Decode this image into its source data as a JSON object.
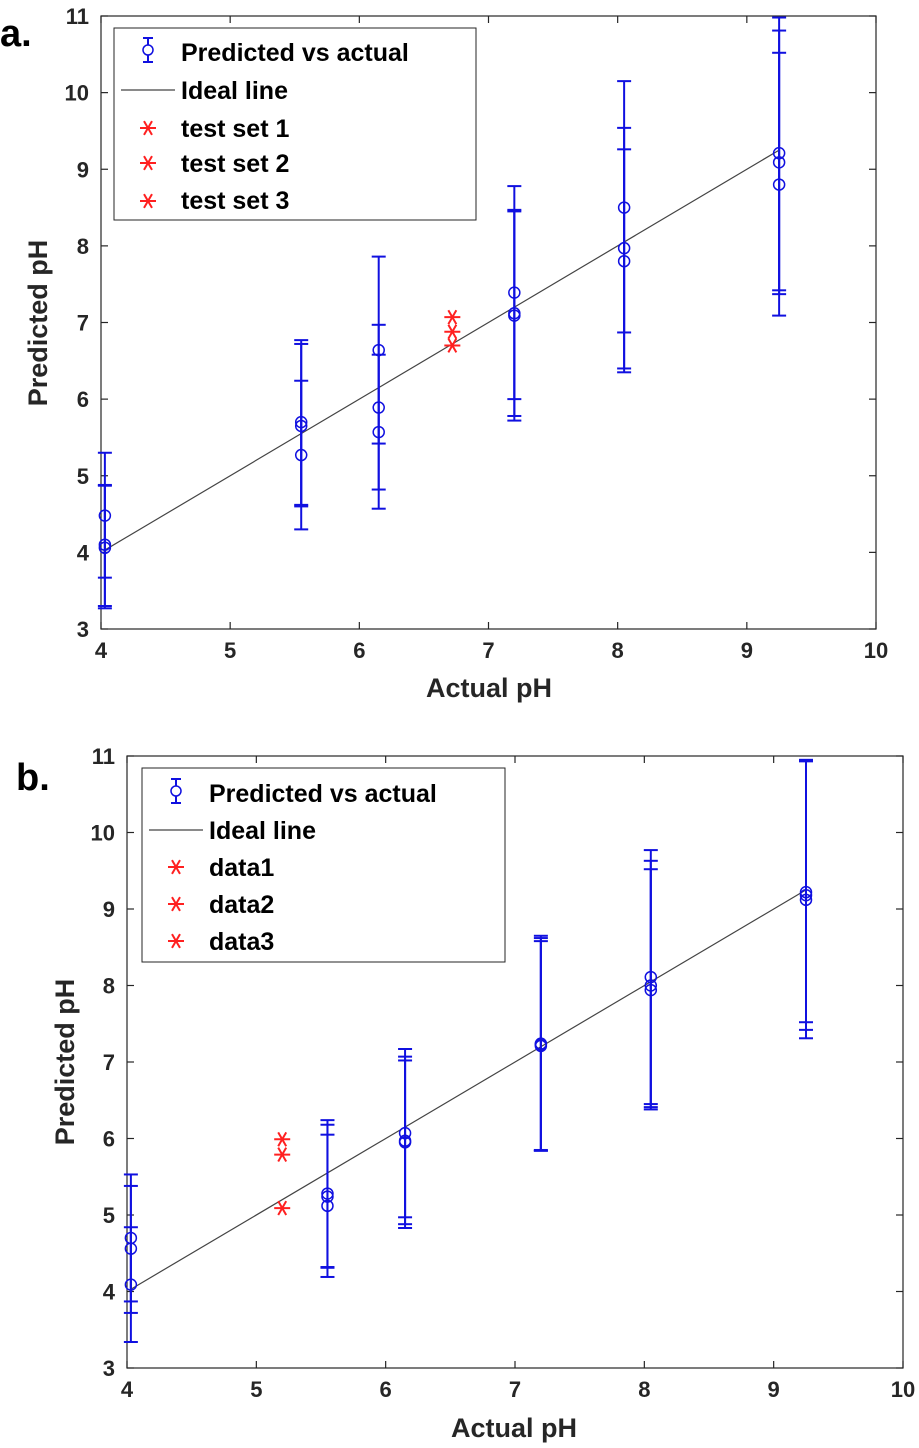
{
  "colors": {
    "marker_blue": "#1010e0",
    "star_red": "#ff2020",
    "ideal_line": "#444444",
    "axis": "#262626"
  },
  "chart_data": [
    {
      "panel_label": "a.",
      "type": "scatter",
      "xlabel": "Actual pH",
      "ylabel": "Predicted pH",
      "xlim": [
        4,
        10
      ],
      "ylim": [
        3,
        11
      ],
      "xticks": [
        "4",
        "5",
        "6",
        "7",
        "8",
        "9",
        "10"
      ],
      "yticks": [
        "3",
        "4",
        "5",
        "6",
        "7",
        "8",
        "9",
        "10",
        "11"
      ],
      "legend": {
        "position": "top-left",
        "entries": [
          "Predicted vs actual",
          "Ideal line",
          "test set 1",
          "test set 2",
          "test set 3"
        ]
      },
      "ideal_line": {
        "x": [
          4.03,
          9.25
        ],
        "y": [
          4.03,
          9.25
        ]
      },
      "predicted_vs_actual": [
        {
          "x": 4.03,
          "y": 4.48,
          "ylow": 3.67,
          "yhigh": 5.3
        },
        {
          "x": 4.03,
          "y": 4.1,
          "ylow": 3.3,
          "yhigh": 4.88
        },
        {
          "x": 4.03,
          "y": 4.06,
          "ylow": 3.27,
          "yhigh": 4.87
        },
        {
          "x": 5.55,
          "y": 5.7,
          "ylow": 4.62,
          "yhigh": 6.77
        },
        {
          "x": 5.55,
          "y": 5.65,
          "ylow": 4.6,
          "yhigh": 6.72
        },
        {
          "x": 5.55,
          "y": 5.27,
          "ylow": 4.3,
          "yhigh": 6.24
        },
        {
          "x": 6.15,
          "y": 6.64,
          "ylow": 5.42,
          "yhigh": 7.86
        },
        {
          "x": 6.15,
          "y": 5.89,
          "ylow": 4.82,
          "yhigh": 6.97
        },
        {
          "x": 6.15,
          "y": 5.57,
          "ylow": 4.57,
          "yhigh": 6.58
        },
        {
          "x": 7.2,
          "y": 7.39,
          "ylow": 6.0,
          "yhigh": 8.78
        },
        {
          "x": 7.2,
          "y": 7.12,
          "ylow": 5.78,
          "yhigh": 8.47
        },
        {
          "x": 7.2,
          "y": 7.09,
          "ylow": 5.72,
          "yhigh": 8.45
        },
        {
          "x": 8.05,
          "y": 8.5,
          "ylow": 6.87,
          "yhigh": 10.15
        },
        {
          "x": 8.05,
          "y": 7.97,
          "ylow": 6.4,
          "yhigh": 9.54
        },
        {
          "x": 8.05,
          "y": 7.8,
          "ylow": 6.35,
          "yhigh": 9.26
        },
        {
          "x": 9.25,
          "y": 9.21,
          "ylow": 7.42,
          "yhigh": 10.98
        },
        {
          "x": 9.25,
          "y": 9.09,
          "ylow": 7.37,
          "yhigh": 10.81
        },
        {
          "x": 9.25,
          "y": 8.8,
          "ylow": 7.09,
          "yhigh": 10.52
        }
      ],
      "test_sets": [
        {
          "name": "test set 1",
          "x": 6.72,
          "y": 7.07
        },
        {
          "name": "test set 2",
          "x": 6.72,
          "y": 6.88
        },
        {
          "name": "test set 3",
          "x": 6.72,
          "y": 6.7
        }
      ]
    },
    {
      "panel_label": "b.",
      "type": "scatter",
      "xlabel": "Actual pH",
      "ylabel": "Predicted pH",
      "xlim": [
        4,
        10
      ],
      "ylim": [
        3,
        11
      ],
      "xticks": [
        "4",
        "5",
        "6",
        "7",
        "8",
        "9",
        "10"
      ],
      "yticks": [
        "3",
        "4",
        "5",
        "6",
        "7",
        "8",
        "9",
        "10",
        "11"
      ],
      "legend": {
        "position": "top-left",
        "entries": [
          "Predicted vs actual",
          "Ideal line",
          "data1",
          "data2",
          "data3"
        ]
      },
      "ideal_line": {
        "x": [
          4.03,
          9.25
        ],
        "y": [
          4.03,
          9.25
        ]
      },
      "predicted_vs_actual": [
        {
          "x": 4.03,
          "y": 4.7,
          "ylow": 3.87,
          "yhigh": 5.53
        },
        {
          "x": 4.03,
          "y": 4.56,
          "ylow": 3.72,
          "yhigh": 5.38
        },
        {
          "x": 4.03,
          "y": 4.09,
          "ylow": 3.34,
          "yhigh": 4.84
        },
        {
          "x": 5.55,
          "y": 5.28,
          "ylow": 4.32,
          "yhigh": 6.24
        },
        {
          "x": 5.55,
          "y": 5.24,
          "ylow": 4.31,
          "yhigh": 6.18
        },
        {
          "x": 5.55,
          "y": 5.12,
          "ylow": 4.19,
          "yhigh": 6.05
        },
        {
          "x": 6.15,
          "y": 6.07,
          "ylow": 4.97,
          "yhigh": 7.17
        },
        {
          "x": 6.15,
          "y": 5.97,
          "ylow": 4.88,
          "yhigh": 7.07
        },
        {
          "x": 6.15,
          "y": 5.95,
          "ylow": 4.83,
          "yhigh": 7.02
        },
        {
          "x": 7.2,
          "y": 7.24,
          "ylow": 5.85,
          "yhigh": 8.65
        },
        {
          "x": 7.2,
          "y": 7.23,
          "ylow": 5.84,
          "yhigh": 8.62
        },
        {
          "x": 7.2,
          "y": 7.21,
          "ylow": 5.84,
          "yhigh": 8.58
        },
        {
          "x": 8.05,
          "y": 8.11,
          "ylow": 6.45,
          "yhigh": 9.77
        },
        {
          "x": 8.05,
          "y": 8.0,
          "ylow": 6.41,
          "yhigh": 9.63
        },
        {
          "x": 8.05,
          "y": 7.94,
          "ylow": 6.38,
          "yhigh": 9.52
        },
        {
          "x": 9.25,
          "y": 9.22,
          "ylow": 7.52,
          "yhigh": 10.95
        },
        {
          "x": 9.25,
          "y": 9.18,
          "ylow": 7.42,
          "yhigh": 10.94
        },
        {
          "x": 9.25,
          "y": 9.12,
          "ylow": 7.31,
          "yhigh": 10.93
        }
      ],
      "test_sets": [
        {
          "name": "data1",
          "x": 5.2,
          "y": 5.99
        },
        {
          "name": "data2",
          "x": 5.2,
          "y": 5.79
        },
        {
          "name": "data3",
          "x": 5.2,
          "y": 5.09
        }
      ]
    }
  ]
}
